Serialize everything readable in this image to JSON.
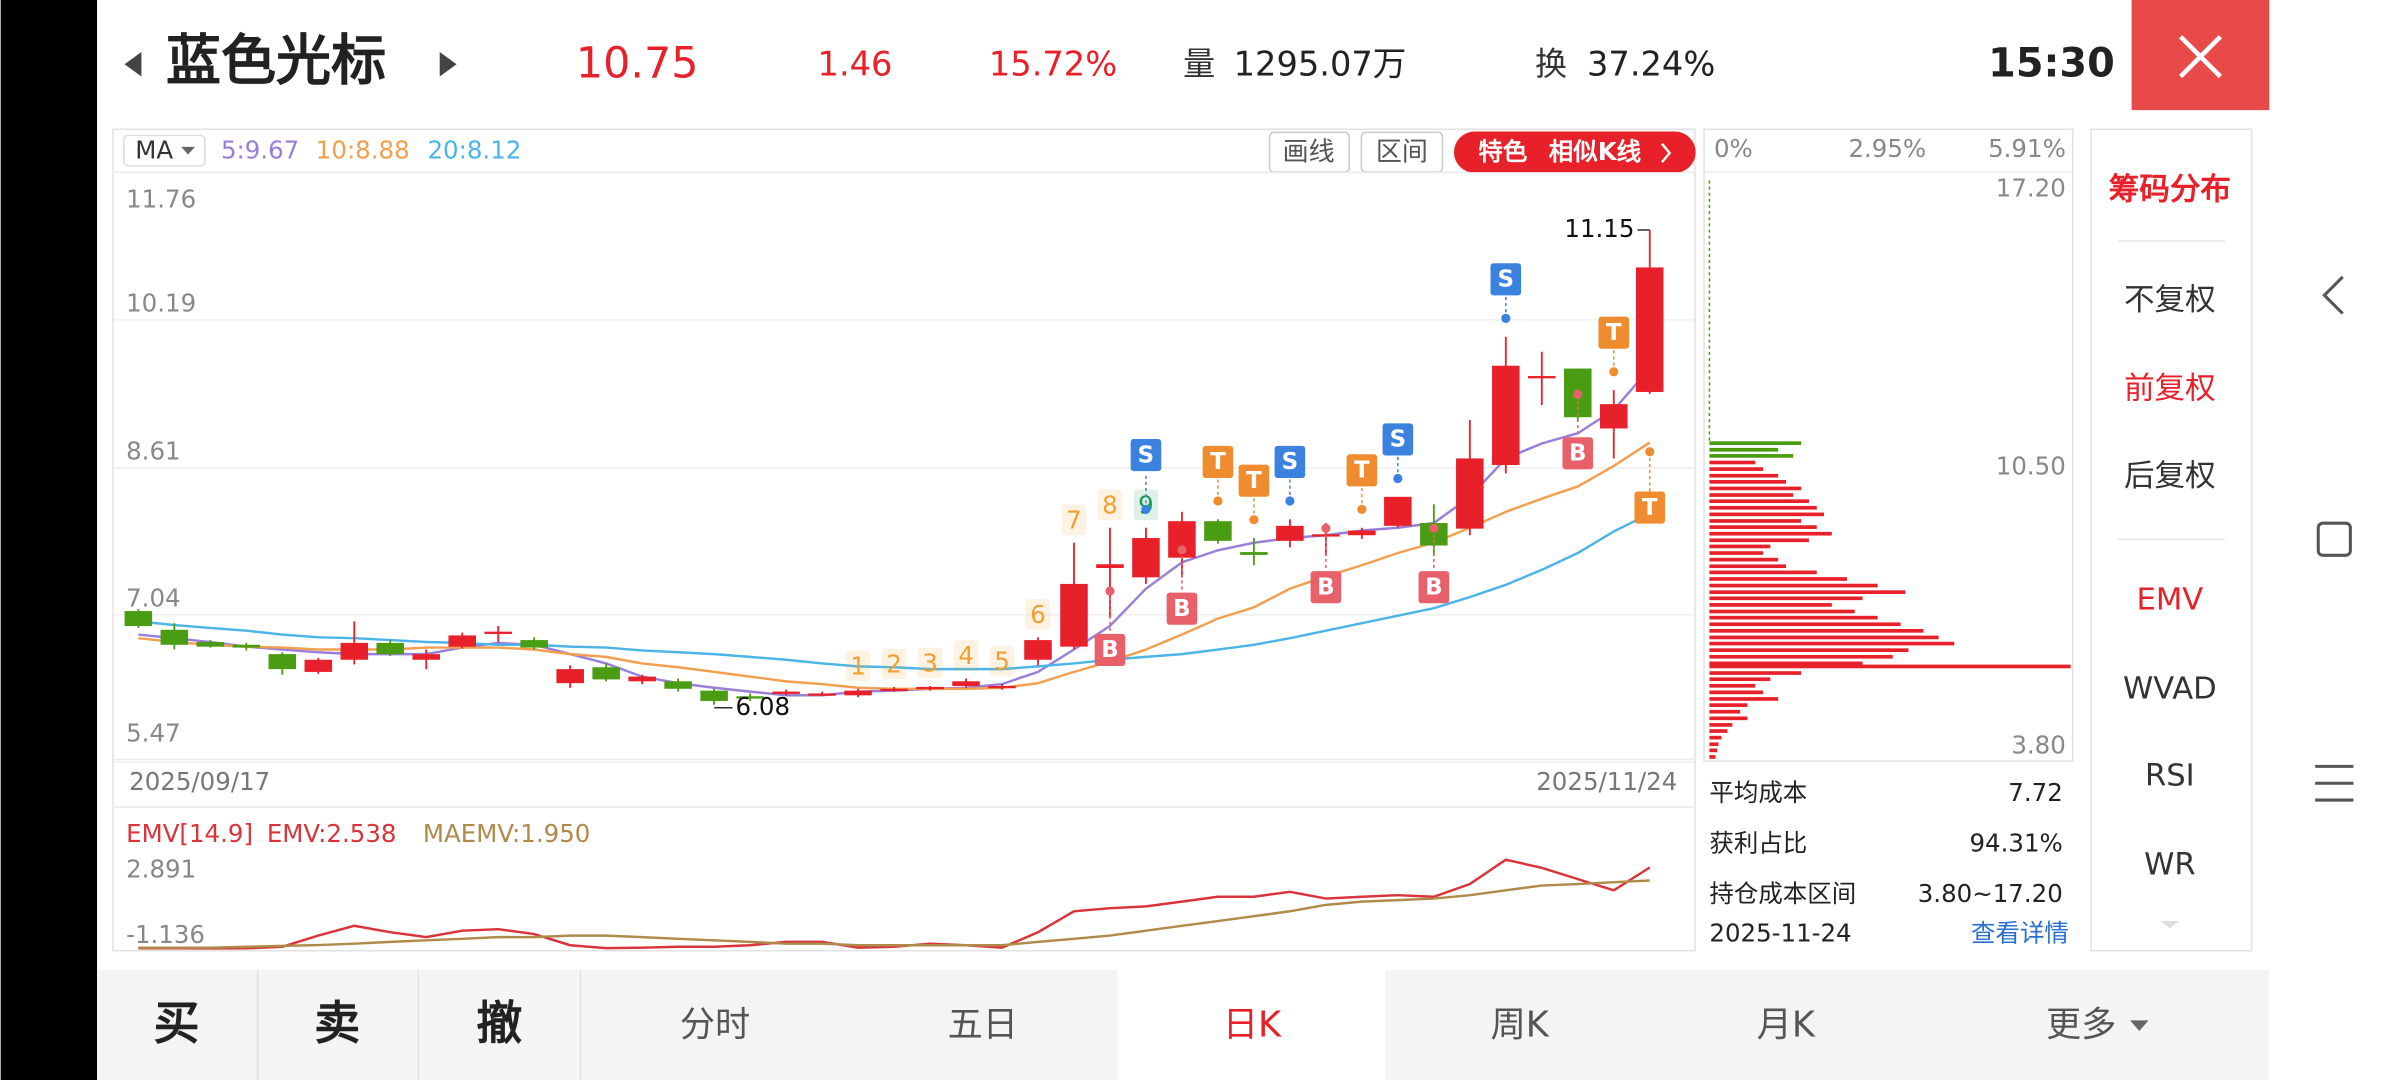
{
  "header": {
    "name": "蓝色光标",
    "price": "10.75",
    "change": "1.46",
    "change_pct": "15.72%",
    "volume_label": "量",
    "volume": "1295.07万",
    "turnover_label": "换",
    "turnover": "37.24%",
    "time": "15:30"
  },
  "chart": {
    "type": "candlestick",
    "indicator": "MA",
    "ma": [
      {
        "label": "5:9.67",
        "color": "#9a7fd9",
        "values": [
          6.83,
          6.79,
          6.75,
          6.7,
          6.67,
          6.64,
          6.62,
          6.62,
          6.62,
          6.69,
          6.74,
          6.72,
          6.62,
          6.52,
          6.38,
          6.31,
          6.26,
          6.22,
          6.18,
          6.18,
          6.22,
          6.23,
          6.25,
          6.26,
          6.3,
          6.43,
          6.67,
          6.92,
          7.32,
          7.6,
          7.73,
          7.81,
          7.86,
          7.89,
          7.94,
          7.97,
          8.02,
          8.3,
          8.71,
          8.87,
          8.98,
          9.23,
          9.67
        ]
      },
      {
        "label": "10:8.88",
        "color": "#f0a050",
        "values": [
          6.79,
          6.75,
          6.72,
          6.7,
          6.69,
          6.67,
          6.67,
          6.67,
          6.69,
          6.69,
          6.69,
          6.67,
          6.62,
          6.59,
          6.52,
          6.48,
          6.43,
          6.38,
          6.33,
          6.3,
          6.26,
          6.25,
          6.25,
          6.25,
          6.26,
          6.31,
          6.43,
          6.54,
          6.67,
          6.83,
          7.0,
          7.12,
          7.32,
          7.45,
          7.57,
          7.7,
          7.81,
          7.97,
          8.14,
          8.28,
          8.41,
          8.63,
          8.88
        ]
      },
      {
        "label": "20:8.12",
        "color": "#4cb4e6",
        "values": [
          6.97,
          6.93,
          6.9,
          6.87,
          6.83,
          6.8,
          6.79,
          6.77,
          6.75,
          6.74,
          6.72,
          6.72,
          6.7,
          6.69,
          6.66,
          6.64,
          6.62,
          6.59,
          6.56,
          6.52,
          6.49,
          6.48,
          6.46,
          6.46,
          6.46,
          6.49,
          6.52,
          6.56,
          6.59,
          6.62,
          6.67,
          6.72,
          6.79,
          6.87,
          6.95,
          7.03,
          7.11,
          7.23,
          7.36,
          7.52,
          7.7,
          7.93,
          8.12
        ]
      }
    ],
    "buttons": [
      "画线",
      "区间"
    ],
    "feature": [
      "特色",
      "相似K线"
    ],
    "ylim": [
      5.47,
      11.76
    ],
    "yticks": [
      5.47,
      7.04,
      8.61,
      10.19,
      11.76
    ],
    "grid": true,
    "date_start": "2025/09/17",
    "date_end": "2025/11/24",
    "up_color": "#e8202a",
    "down_color": "#4a9c12",
    "candles": [
      {
        "open": 7.08,
        "high": 7.1,
        "low": 6.9,
        "close": 6.92
      },
      {
        "open": 6.88,
        "high": 6.95,
        "low": 6.67,
        "close": 6.72
      },
      {
        "open": 6.75,
        "high": 6.77,
        "low": 6.69,
        "close": 6.7
      },
      {
        "open": 6.72,
        "high": 6.74,
        "low": 6.66,
        "close": 6.69
      },
      {
        "open": 6.62,
        "high": 6.64,
        "low": 6.4,
        "close": 6.46
      },
      {
        "open": 6.43,
        "high": 6.58,
        "low": 6.41,
        "close": 6.56
      },
      {
        "open": 6.56,
        "high": 6.97,
        "low": 6.51,
        "close": 6.74
      },
      {
        "open": 6.74,
        "high": 6.77,
        "low": 6.6,
        "close": 6.62
      },
      {
        "open": 6.56,
        "high": 6.67,
        "low": 6.46,
        "close": 6.62
      },
      {
        "open": 6.7,
        "high": 6.85,
        "low": 6.68,
        "close": 6.82
      },
      {
        "open": 6.84,
        "high": 6.92,
        "low": 6.75,
        "close": 6.86
      },
      {
        "open": 6.77,
        "high": 6.8,
        "low": 6.67,
        "close": 6.69
      },
      {
        "open": 6.31,
        "high": 6.5,
        "low": 6.26,
        "close": 6.46
      },
      {
        "open": 6.48,
        "high": 6.52,
        "low": 6.33,
        "close": 6.35
      },
      {
        "open": 6.33,
        "high": 6.4,
        "low": 6.3,
        "close": 6.38
      },
      {
        "open": 6.33,
        "high": 6.36,
        "low": 6.22,
        "close": 6.25
      },
      {
        "open": 6.23,
        "high": 6.25,
        "low": 6.08,
        "close": 6.12
      },
      {
        "open": 6.17,
        "high": 6.2,
        "low": 6.12,
        "close": 6.15
      },
      {
        "open": 6.2,
        "high": 6.24,
        "low": 6.18,
        "close": 6.22
      },
      {
        "open": 6.19,
        "high": 6.22,
        "low": 6.17,
        "close": 6.2
      },
      {
        "open": 6.18,
        "high": 6.25,
        "low": 6.16,
        "close": 6.23
      },
      {
        "open": 6.24,
        "high": 6.27,
        "low": 6.22,
        "close": 6.25
      },
      {
        "open": 6.25,
        "high": 6.28,
        "low": 6.23,
        "close": 6.27
      },
      {
        "open": 6.28,
        "high": 6.36,
        "low": 6.26,
        "close": 6.33
      },
      {
        "open": 6.26,
        "high": 6.3,
        "low": 6.24,
        "close": 6.28
      },
      {
        "open": 6.56,
        "high": 6.8,
        "low": 6.5,
        "close": 6.77
      },
      {
        "open": 6.7,
        "high": 7.81,
        "low": 6.67,
        "close": 7.37
      },
      {
        "open": 7.54,
        "high": 7.97,
        "low": 7.0,
        "close": 7.58
      },
      {
        "open": 7.44,
        "high": 7.97,
        "low": 7.37,
        "close": 7.86
      },
      {
        "open": 7.65,
        "high": 8.14,
        "low": 7.44,
        "close": 8.04
      },
      {
        "open": 8.04,
        "high": 8.06,
        "low": 7.8,
        "close": 7.83
      },
      {
        "open": 7.71,
        "high": 7.86,
        "low": 7.57,
        "close": 7.68
      },
      {
        "open": 7.83,
        "high": 8.06,
        "low": 7.76,
        "close": 7.99
      },
      {
        "open": 7.88,
        "high": 8.02,
        "low": 7.67,
        "close": 7.9
      },
      {
        "open": 7.89,
        "high": 7.97,
        "low": 7.85,
        "close": 7.94
      },
      {
        "open": 7.99,
        "high": 8.3,
        "low": 7.97,
        "close": 8.3
      },
      {
        "open": 8.02,
        "high": 8.22,
        "low": 7.67,
        "close": 7.78
      },
      {
        "open": 7.96,
        "high": 9.12,
        "low": 7.89,
        "close": 8.71
      },
      {
        "open": 8.64,
        "high": 10.01,
        "low": 8.55,
        "close": 9.7
      },
      {
        "open": 9.57,
        "high": 9.85,
        "low": 9.28,
        "close": 9.59
      },
      {
        "open": 9.67,
        "high": 9.67,
        "low": 9.1,
        "close": 9.15
      },
      {
        "open": 9.03,
        "high": 9.44,
        "low": 8.71,
        "close": 9.29
      },
      {
        "open": 9.42,
        "high": 11.15,
        "low": 9.4,
        "close": 10.75
      }
    ],
    "signals": [
      {
        "text": "S",
        "color": "#3b82e0",
        "side": "above",
        "bars": [
          28,
          32,
          35,
          38
        ]
      },
      {
        "text": "T",
        "color": "#f08c30",
        "side": "above",
        "bars": [
          30,
          31,
          34,
          41,
          42
        ]
      },
      {
        "text": "B",
        "color": "#e8606a",
        "side": "below",
        "bars": [
          27,
          29,
          33,
          36,
          40
        ]
      }
    ],
    "counts": {
      "bars": [
        20,
        21,
        22,
        23,
        24,
        25,
        26,
        27,
        28
      ],
      "labels": [
        "1",
        "2",
        "3",
        "4",
        "5",
        "6",
        "7",
        "8",
        "9"
      ],
      "colors": [
        "#f0a030",
        "#f0a030",
        "#f0a030",
        "#f0a030",
        "#f0a030",
        "#f0a030",
        "#f0a030",
        "#f0a030",
        "#1f9a55"
      ]
    }
  },
  "emv": {
    "title": "EMV[14.9]",
    "ylim": [
      -1.136,
      2.891
    ],
    "yticks": [
      -1.136,
      2.891
    ],
    "series": [
      {
        "name": "EMV:2.538",
        "color": "#d9343a",
        "values": [
          -1.13,
          -1.13,
          -1.136,
          -1.13,
          -1.06,
          -0.55,
          -0.11,
          -0.4,
          -0.62,
          -0.33,
          -0.26,
          -0.48,
          -0.99,
          -1.12,
          -1.1,
          -1.06,
          -1.06,
          -0.99,
          -0.84,
          -0.84,
          -1.1,
          -1.06,
          -0.92,
          -0.99,
          -1.1,
          -0.4,
          0.55,
          0.69,
          0.77,
          0.99,
          1.21,
          1.21,
          1.43,
          1.13,
          1.21,
          1.28,
          1.21,
          1.79,
          2.891,
          2.52,
          2.01,
          1.5,
          2.538
        ]
      },
      {
        "name": "MAEMV:1.950",
        "color": "#b08a4a",
        "values": [
          -1.1,
          -1.1,
          -1.1,
          -1.06,
          -1.02,
          -0.98,
          -0.92,
          -0.84,
          -0.77,
          -0.7,
          -0.62,
          -0.62,
          -0.55,
          -0.55,
          -0.62,
          -0.7,
          -0.77,
          -0.84,
          -0.92,
          -0.92,
          -0.99,
          -0.99,
          -0.99,
          -0.99,
          -0.99,
          -0.84,
          -0.7,
          -0.55,
          -0.33,
          -0.11,
          0.11,
          0.33,
          0.55,
          0.84,
          0.99,
          1.06,
          1.13,
          1.28,
          1.5,
          1.72,
          1.79,
          1.87,
          1.95
        ]
      }
    ]
  },
  "chips": {
    "xlim": [
      0,
      5.91
    ],
    "xticks": [
      {
        "value": 0,
        "label": "0%"
      },
      {
        "value": 2.95,
        "label": "2.95%"
      },
      {
        "value": 5.91,
        "label": "5.91%"
      }
    ],
    "ylim": [
      3.8,
      17.2
    ],
    "yticks": [
      {
        "value": 3.8,
        "label": "3.80"
      },
      {
        "value": 10.5,
        "label": "10.50"
      },
      {
        "value": 17.2,
        "label": "17.20"
      }
    ],
    "profit_color": "#e8202a",
    "loss_color": "#4a9c12",
    "bars": [
      {
        "price": 11.05,
        "percent": 1.52
      },
      {
        "price": 10.9,
        "percent": 1.14
      },
      {
        "price": 10.76,
        "percent": 1.39
      },
      {
        "price": 10.61,
        "percent": 0.76
      },
      {
        "price": 10.46,
        "percent": 0.89
      },
      {
        "price": 10.31,
        "percent": 1.14
      },
      {
        "price": 10.17,
        "percent": 1.27
      },
      {
        "price": 10.02,
        "percent": 1.52
      },
      {
        "price": 9.87,
        "percent": 1.39
      },
      {
        "price": 9.73,
        "percent": 1.65
      },
      {
        "price": 9.58,
        "percent": 1.78
      },
      {
        "price": 9.43,
        "percent": 1.9
      },
      {
        "price": 9.28,
        "percent": 1.52
      },
      {
        "price": 9.14,
        "percent": 1.78
      },
      {
        "price": 8.99,
        "percent": 2.03
      },
      {
        "price": 8.84,
        "percent": 1.65
      },
      {
        "price": 8.7,
        "percent": 1.01
      },
      {
        "price": 8.55,
        "percent": 0.89
      },
      {
        "price": 8.4,
        "percent": 1.14
      },
      {
        "price": 8.25,
        "percent": 1.27
      },
      {
        "price": 8.11,
        "percent": 1.78
      },
      {
        "price": 7.96,
        "percent": 2.28
      },
      {
        "price": 7.81,
        "percent": 2.79
      },
      {
        "price": 7.66,
        "percent": 3.25
      },
      {
        "price": 7.52,
        "percent": 2.54
      },
      {
        "price": 7.37,
        "percent": 2.03
      },
      {
        "price": 7.22,
        "percent": 2.41
      },
      {
        "price": 7.08,
        "percent": 2.79
      },
      {
        "price": 6.93,
        "percent": 3.17
      },
      {
        "price": 6.78,
        "percent": 3.55
      },
      {
        "price": 6.63,
        "percent": 3.8
      },
      {
        "price": 6.49,
        "percent": 4.06
      },
      {
        "price": 6.34,
        "percent": 3.3
      },
      {
        "price": 6.19,
        "percent": 3.04
      },
      {
        "price": 6.04,
        "percent": 2.54
      },
      {
        "price": 5.97,
        "percent": 5.99
      },
      {
        "price": 5.82,
        "percent": 1.52
      },
      {
        "price": 5.68,
        "percent": 1.01
      },
      {
        "price": 5.53,
        "percent": 0.76
      },
      {
        "price": 5.38,
        "percent": 0.89
      },
      {
        "price": 5.23,
        "percent": 1.14
      },
      {
        "price": 5.09,
        "percent": 0.63
      },
      {
        "price": 4.94,
        "percent": 0.51
      },
      {
        "price": 4.79,
        "percent": 0.63
      },
      {
        "price": 4.64,
        "percent": 0.38
      },
      {
        "price": 4.5,
        "percent": 0.3
      },
      {
        "price": 4.35,
        "percent": 0.2
      },
      {
        "price": 4.2,
        "percent": 0.15
      },
      {
        "price": 4.06,
        "percent": 0.13
      },
      {
        "price": 3.91,
        "percent": 0.1
      }
    ],
    "stats": [
      [
        "平均成本",
        "7.72"
      ],
      [
        "获利占比",
        "94.31%"
      ],
      [
        "持仓成本区间",
        "3.80~17.20"
      ]
    ],
    "date": "2025-11-24",
    "link": "查看详情"
  },
  "menu": [
    {
      "text": "筹码分布",
      "color": "#e8202a"
    },
    {
      "text": "不复权",
      "color": "#333333"
    },
    {
      "text": "前复权",
      "color": "#e8202a"
    },
    {
      "text": "后复权",
      "color": "#333333"
    },
    {
      "text": "EMV",
      "color": "#e8202a"
    },
    {
      "text": "WVAD",
      "color": "#333333"
    },
    {
      "text": "RSI",
      "color": "#333333"
    },
    {
      "text": "WR",
      "color": "#333333"
    }
  ],
  "tabs": [
    "买",
    "卖",
    "撤",
    "分时",
    "五日",
    "日K",
    "周K",
    "月K",
    "更多"
  ],
  "active_tab": "日K"
}
